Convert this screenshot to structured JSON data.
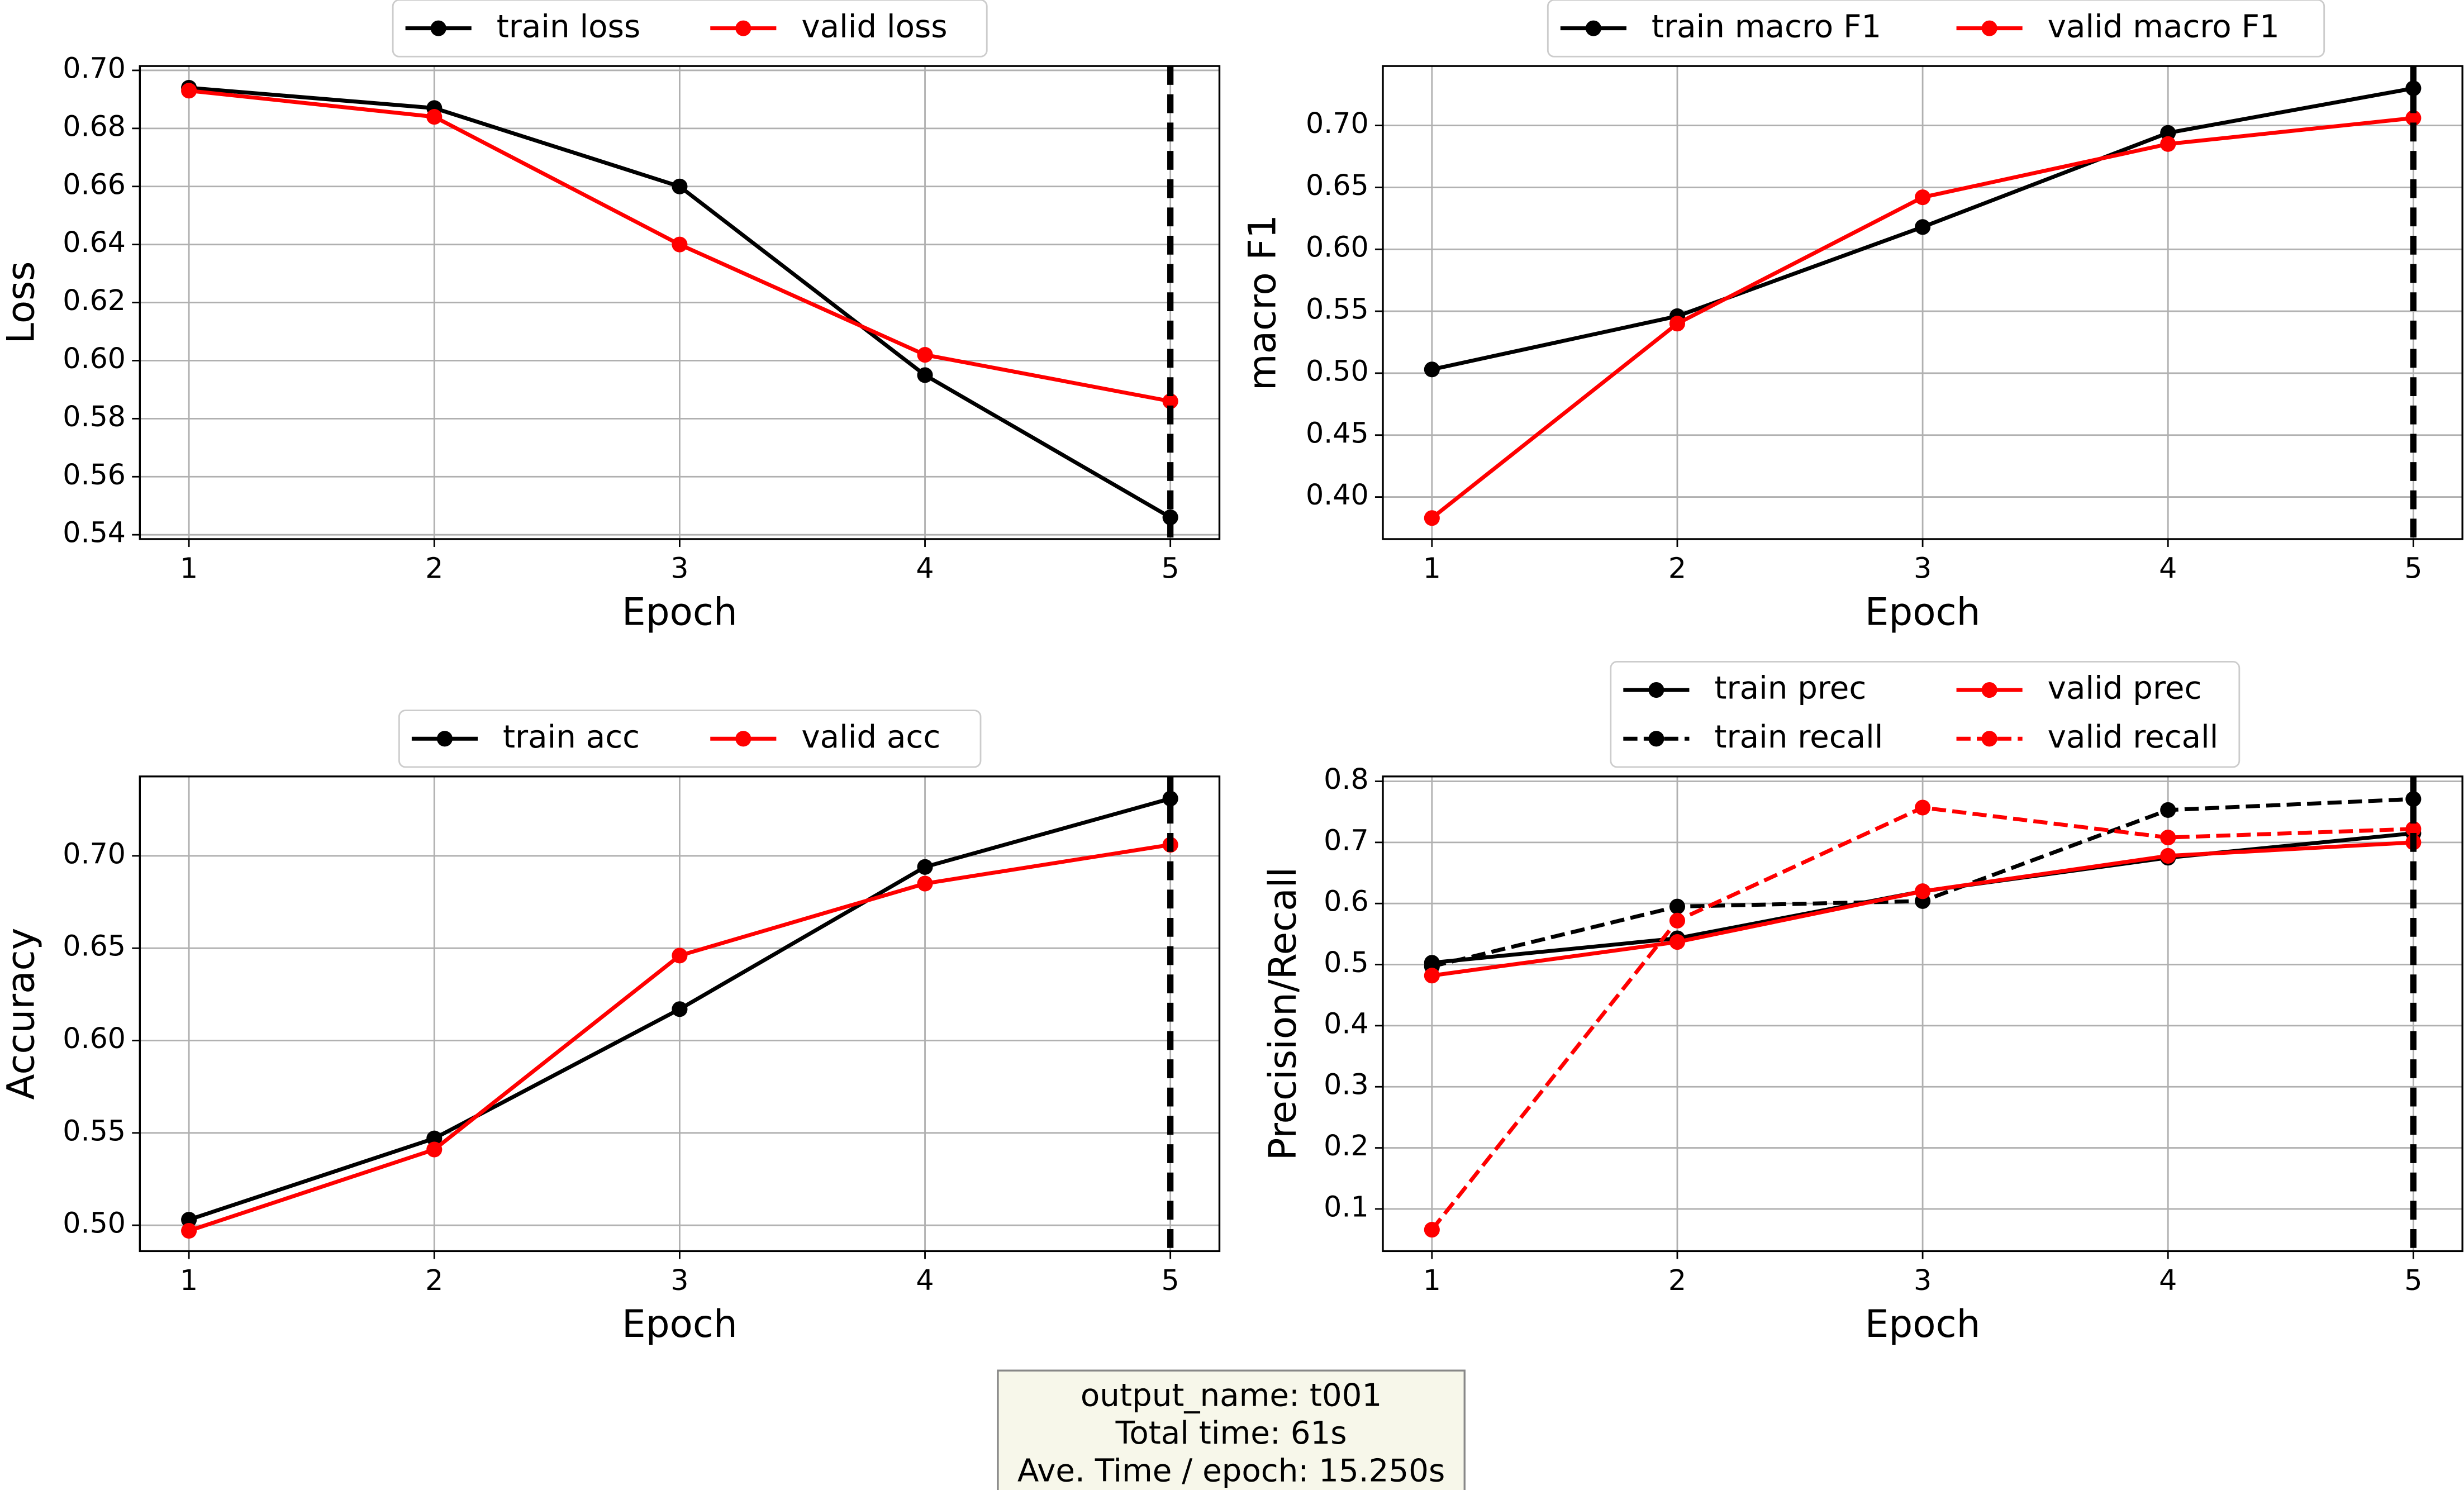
{
  "chart_data": [
    {
      "type": "line",
      "x_label": "Epoch",
      "y_label": "Loss",
      "x": [
        1,
        2,
        3,
        4,
        5
      ],
      "series": [
        {
          "name": "train loss",
          "color": "#000000",
          "dashed": false,
          "values": [
            0.694,
            0.687,
            0.66,
            0.595,
            0.546
          ]
        },
        {
          "name": "valid loss",
          "color": "#ff0000",
          "dashed": false,
          "values": [
            0.693,
            0.684,
            0.64,
            0.602,
            0.586
          ]
        }
      ],
      "xlim": [
        0.8,
        5.2
      ],
      "xticks": [
        1,
        2,
        3,
        4,
        5
      ],
      "ylim": [
        0.5385,
        0.7015
      ],
      "yticks": [
        0.54,
        0.56,
        0.58,
        {
          "value": 0.6,
          "label": "0.60"
        },
        0.62,
        0.64,
        0.66,
        0.68,
        {
          "value": 0.7,
          "label": "0.70"
        }
      ],
      "grid": true,
      "vline": 5,
      "legend": "upper center"
    },
    {
      "type": "line",
      "x_label": "Epoch",
      "y_label": "macro F1",
      "x": [
        1,
        2,
        3,
        4,
        5
      ],
      "series": [
        {
          "name": "train macro F1",
          "color": "#000000",
          "dashed": false,
          "values": [
            0.503,
            0.546,
            0.618,
            0.694,
            0.73
          ]
        },
        {
          "name": "valid macro F1",
          "color": "#ff0000",
          "dashed": false,
          "values": [
            0.383,
            0.54,
            0.642,
            0.685,
            0.706
          ]
        }
      ],
      "xlim": [
        0.8,
        5.2
      ],
      "xticks": [
        1,
        2,
        3,
        4,
        5
      ],
      "ylim": [
        0.366,
        0.748
      ],
      "yticks": [
        {
          "value": 0.4,
          "label": "0.40"
        },
        0.45,
        {
          "value": 0.5,
          "label": "0.50"
        },
        0.55,
        {
          "value": 0.6,
          "label": "0.60"
        },
        0.65,
        {
          "value": 0.7,
          "label": "0.70"
        }
      ],
      "grid": true,
      "vline": 5,
      "legend": "upper center"
    },
    {
      "type": "line",
      "x_label": "Epoch",
      "y_label": "Accuracy",
      "x": [
        1,
        2,
        3,
        4,
        5
      ],
      "series": [
        {
          "name": "train acc",
          "color": "#000000",
          "dashed": false,
          "values": [
            0.503,
            0.547,
            0.617,
            0.694,
            0.731
          ]
        },
        {
          "name": "valid acc",
          "color": "#ff0000",
          "dashed": false,
          "values": [
            0.497,
            0.541,
            0.646,
            0.685,
            0.706
          ]
        }
      ],
      "xlim": [
        0.8,
        5.2
      ],
      "xticks": [
        1,
        2,
        3,
        4,
        5
      ],
      "ylim": [
        0.486,
        0.743
      ],
      "yticks": [
        {
          "value": 0.5,
          "label": "0.50"
        },
        0.55,
        {
          "value": 0.6,
          "label": "0.60"
        },
        0.65,
        {
          "value": 0.7,
          "label": "0.70"
        }
      ],
      "grid": true,
      "vline": 5,
      "legend": "upper center"
    },
    {
      "type": "line",
      "x_label": "Epoch",
      "y_label": "Precision/Recall",
      "x": [
        1,
        2,
        3,
        4,
        5
      ],
      "series": [
        {
          "name": "train prec",
          "color": "#000000",
          "dashed": false,
          "values": [
            0.503,
            0.543,
            0.62,
            0.675,
            0.715
          ]
        },
        {
          "name": "train recall",
          "color": "#000000",
          "dashed": true,
          "values": [
            0.497,
            0.595,
            0.604,
            0.753,
            0.771
          ]
        },
        {
          "name": "valid prec",
          "color": "#ff0000",
          "dashed": false,
          "values": [
            0.482,
            0.537,
            0.62,
            0.678,
            0.7
          ]
        },
        {
          "name": "valid recall",
          "color": "#ff0000",
          "dashed": true,
          "values": [
            0.066,
            0.572,
            0.757,
            0.708,
            0.722
          ]
        }
      ],
      "xlim": [
        0.8,
        5.2
      ],
      "xticks": [
        1,
        2,
        3,
        4,
        5
      ],
      "ylim": [
        0.031,
        0.808
      ],
      "yticks": [
        0.1,
        0.2,
        0.3,
        0.4,
        0.5,
        0.6,
        0.7,
        0.8
      ],
      "grid": true,
      "vline": 5,
      "legend": "upper center"
    }
  ],
  "info_box": {
    "lines": [
      "output_name: t001",
      "Total time: 61s",
      "Ave. Time / epoch: 15.250s"
    ]
  }
}
